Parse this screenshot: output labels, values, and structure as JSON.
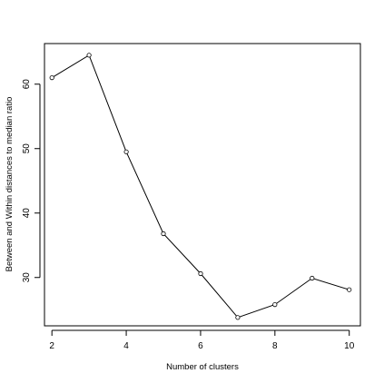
{
  "chart_data": {
    "type": "line",
    "title": "",
    "xlabel": "Number of clusters",
    "ylabel": "Between and Within distances to median ratio",
    "x": [
      2,
      3,
      4,
      5,
      6,
      7,
      8,
      9,
      10
    ],
    "series": [
      {
        "values": [
          61.0,
          64.5,
          49.5,
          36.8,
          30.6,
          23.8,
          25.8,
          29.9,
          28.1
        ]
      }
    ],
    "xlim": [
      1.8,
      10.3
    ],
    "ylim": [
      22.5,
      66.3
    ],
    "xticks": [
      2,
      4,
      6,
      8,
      10
    ],
    "xtick_labels": [
      "2",
      "4",
      "6",
      "8",
      "10"
    ],
    "yticks": [
      30,
      40,
      50,
      60
    ],
    "ytick_labels": [
      "30",
      "40",
      "50",
      "60"
    ],
    "grid": false,
    "legend": "none",
    "marker": "open-circle",
    "colors": {
      "line": "#000000",
      "marker": "#000000",
      "box": "#000000"
    }
  }
}
